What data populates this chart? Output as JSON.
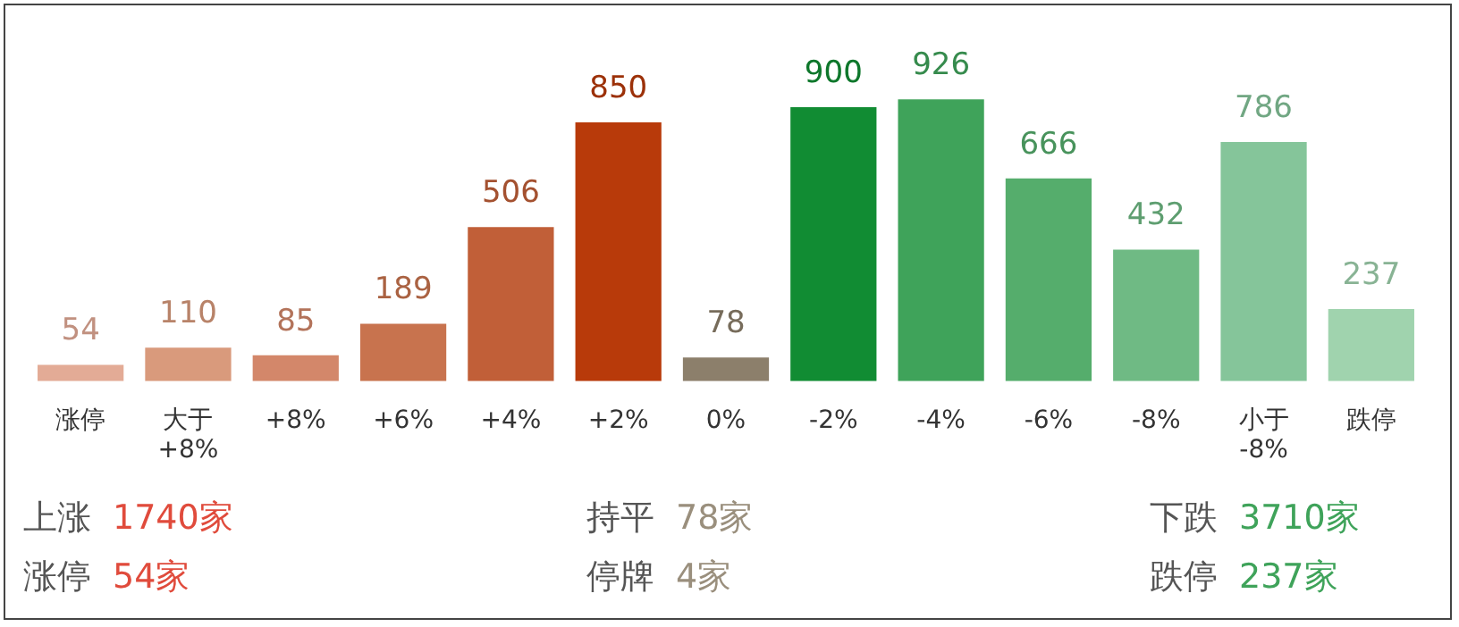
{
  "chart_data": {
    "type": "bar",
    "categories": [
      "涨停",
      "大于\n+8%",
      "+8%",
      "+6%",
      "+4%",
      "+2%",
      "0%",
      "-2%",
      "-4%",
      "-6%",
      "-8%",
      "小于\n-8%",
      "跌停"
    ],
    "values": [
      54,
      110,
      85,
      189,
      506,
      850,
      78,
      900,
      926,
      666,
      432,
      786,
      237
    ],
    "colors": [
      "#e3ab96",
      "#d99a7c",
      "#d3876a",
      "#c8734e",
      "#c15f38",
      "#b83a0a",
      "#8c7f6b",
      "#118c33",
      "#3fa35a",
      "#55ad6c",
      "#6fba84",
      "#85c59a",
      "#a0d3ae"
    ],
    "data_labels": true,
    "grid": false,
    "legend": false,
    "tick_labels": "x",
    "annotations": [
      "上涨 1740家",
      "持平 78家",
      "下跌 3710家",
      "涨停 54家",
      "停牌 4家",
      "跌停 237家"
    ]
  }
}
